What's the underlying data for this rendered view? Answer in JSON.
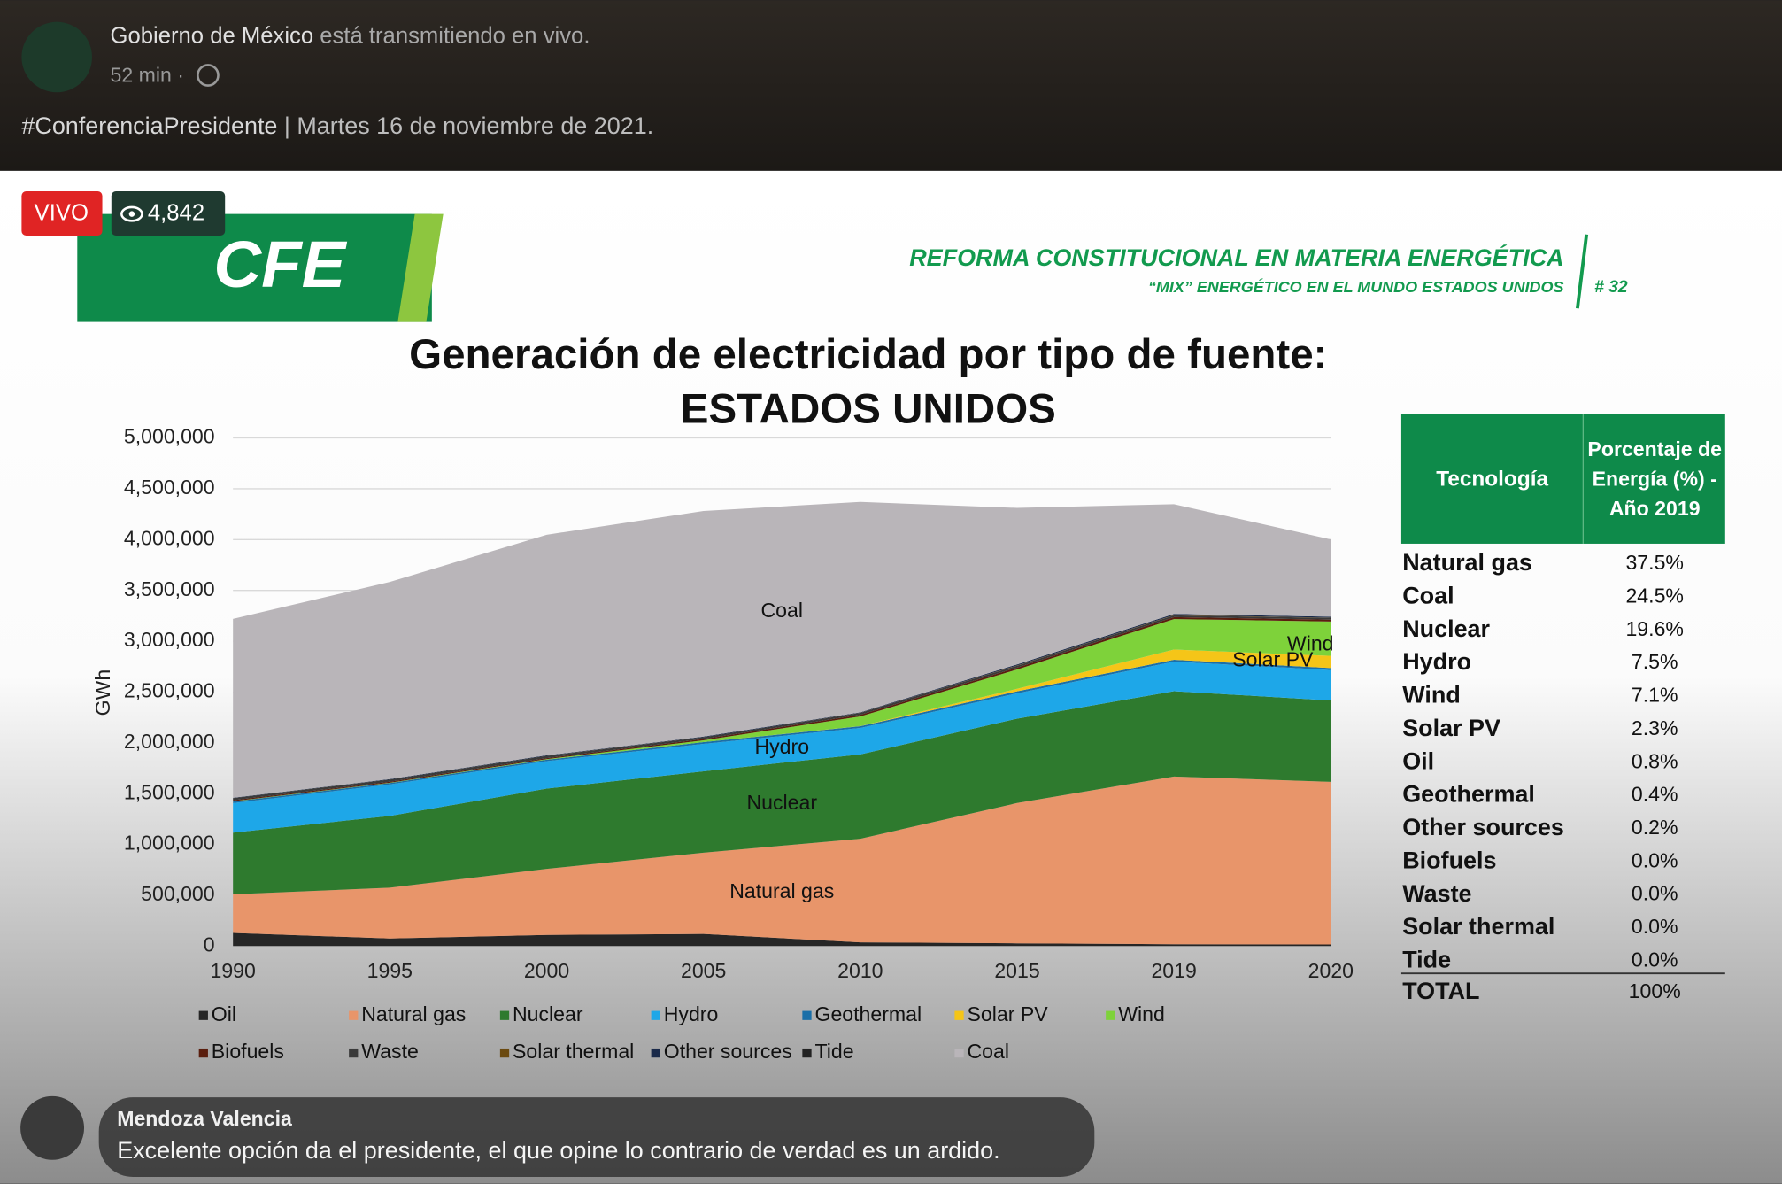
{
  "post": {
    "author": "Gobierno de México",
    "status": "está transmitiendo en vivo.",
    "time": "52 min ·",
    "hashtag": "#ConferenciaPresidente",
    "caption": "| Martes 16 de noviembre de 2021."
  },
  "live": {
    "badge": "VIVO",
    "viewers": "4,842"
  },
  "slide": {
    "logo": "CFE",
    "heading": "REFORMA CONSTITUCIONAL EN MATERIA ENERGÉTICA",
    "subheading": "“MIX” ENERGÉTICO EN EL MUNDO ESTADOS UNIDOS",
    "number": "# 32"
  },
  "chart_data": {
    "type": "stacked_area",
    "title": "Generación de electricidad por tipo de fuente:",
    "subtitle": "ESTADOS UNIDOS",
    "y_label": "GWh",
    "categories": [
      "1990",
      "1995",
      "2000",
      "2005",
      "2010",
      "2015",
      "2019",
      "2020"
    ],
    "ylim": [
      0,
      5000000
    ],
    "yticks": [
      0,
      {
        "value": 500000,
        "label": "500,000"
      },
      {
        "value": 1000000,
        "label": "1,000,000"
      },
      {
        "value": 1500000,
        "label": "1,500,000"
      },
      {
        "value": 2000000,
        "label": "2,000,000"
      },
      {
        "value": 2500000,
        "label": "2,500,000"
      },
      {
        "value": 3000000,
        "label": "3,000,000"
      },
      {
        "value": 3500000,
        "label": "3,500,000"
      },
      {
        "value": 4000000,
        "label": "4,000,000"
      },
      {
        "value": 4500000,
        "label": "4,500,000"
      },
      {
        "value": 5000000,
        "label": "5,000,000"
      }
    ],
    "grid": true,
    "series": [
      {
        "name": "Oil",
        "color": "#262626",
        "values": [
          130000,
          75000,
          110000,
          120000,
          37000,
          28000,
          19000,
          17000
        ]
      },
      {
        "name": "Natural gas",
        "color": "#e8956a",
        "values": [
          380000,
          500000,
          650000,
          800000,
          1020000,
          1380000,
          1650000,
          1600000
        ]
      },
      {
        "name": "Nuclear",
        "color": "#2e7a2e",
        "values": [
          607000,
          706000,
          790000,
          800000,
          830000,
          830000,
          840000,
          800000
        ]
      },
      {
        "name": "Hydro",
        "color": "#1ea7e8",
        "values": [
          290000,
          310000,
          270000,
          270000,
          260000,
          250000,
          290000,
          300000
        ]
      },
      {
        "name": "Geothermal",
        "color": "#1a6fa8",
        "values": [
          16000,
          14000,
          14000,
          17000,
          17000,
          19000,
          19000,
          19000
        ]
      },
      {
        "name": "Solar PV",
        "color": "#f5c518",
        "values": [
          0,
          0,
          0,
          0,
          1000,
          25000,
          100000,
          120000
        ]
      },
      {
        "name": "Wind",
        "color": "#7ed23a",
        "values": [
          3000,
          3000,
          6000,
          18000,
          95000,
          190000,
          300000,
          338000
        ]
      },
      {
        "name": "Biofuels",
        "color": "#5a1e0e",
        "values": [
          10000,
          10000,
          10000,
          13000,
          16000,
          18000,
          19000,
          18000
        ]
      },
      {
        "name": "Waste",
        "color": "#3a3a3a",
        "values": [
          20000,
          21000,
          22000,
          18000,
          19000,
          19000,
          18000,
          17000
        ]
      },
      {
        "name": "Solar thermal",
        "color": "#6b4a10",
        "values": [
          600,
          800,
          500,
          500,
          800,
          3000,
          3200,
          3000
        ]
      },
      {
        "name": "Other sources",
        "color": "#1a2a4a",
        "values": [
          3000,
          4000,
          5000,
          5000,
          5000,
          10000,
          10000,
          10000
        ]
      },
      {
        "name": "Tide",
        "color": "#222222",
        "values": [
          0,
          0,
          0,
          0,
          0,
          0,
          0,
          0
        ]
      },
      {
        "name": "Coal",
        "color": "#b9b5b9",
        "values": [
          1760000,
          1940000,
          2170000,
          2220000,
          2070000,
          1540000,
          1080000,
          760000
        ]
      }
    ],
    "annotations": [
      "Coal",
      "Hydro",
      "Nuclear",
      "Natural gas",
      "Wind",
      "Solar PV"
    ]
  },
  "table": {
    "header": [
      "Tecnología",
      "Porcentaje de Energía (%) - Año 2019"
    ],
    "rows": [
      [
        "Natural gas",
        "37.5%"
      ],
      [
        "Coal",
        "24.5%"
      ],
      [
        "Nuclear",
        "19.6%"
      ],
      [
        "Hydro",
        "7.5%"
      ],
      [
        "Wind",
        "7.1%"
      ],
      [
        "Solar PV",
        "2.3%"
      ],
      [
        "Oil",
        "0.8%"
      ],
      [
        "Geothermal",
        "0.4%"
      ],
      [
        "Other sources",
        "0.2%"
      ],
      [
        "Biofuels",
        "0.0%"
      ],
      [
        "Waste",
        "0.0%"
      ],
      [
        "Solar thermal",
        "0.0%"
      ],
      [
        "Tide",
        "0.0%"
      ]
    ],
    "total": [
      "TOTAL",
      "100%"
    ]
  },
  "comment": {
    "author": "Mendoza Valencia",
    "text": "Excelente opción da el presidente,  el que opine lo contrario de verdad es un ardido."
  }
}
